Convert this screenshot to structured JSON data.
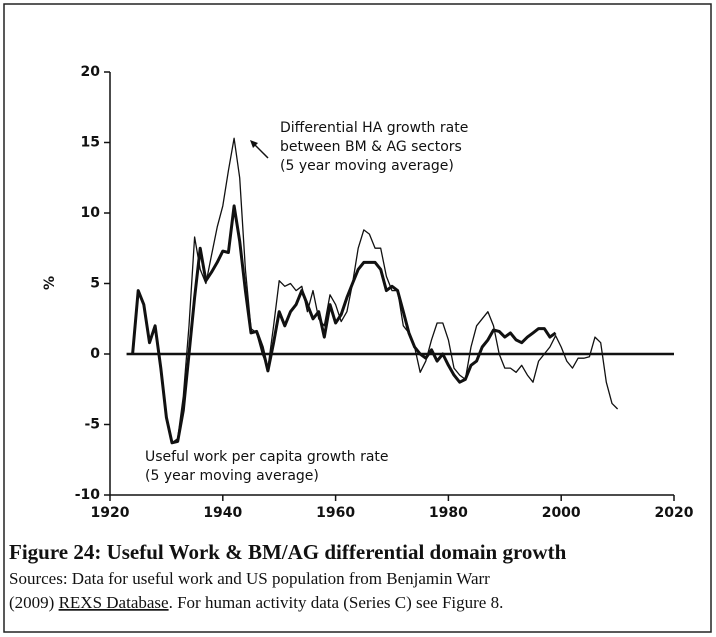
{
  "chart_data": {
    "type": "line",
    "ylabel": "%",
    "x": [
      1924,
      1925,
      1926,
      1927,
      1928,
      1929,
      1930,
      1931,
      1932,
      1933,
      1934,
      1935,
      1936,
      1937,
      1938,
      1939,
      1940,
      1941,
      1942,
      1943,
      1944,
      1945,
      1946,
      1947,
      1948,
      1949,
      1950,
      1951,
      1952,
      1953,
      1954,
      1955,
      1956,
      1957,
      1958,
      1959,
      1960,
      1961,
      1962,
      1963,
      1964,
      1965,
      1966,
      1967,
      1968,
      1969,
      1970,
      1971,
      1972,
      1973,
      1974,
      1975,
      1976,
      1977,
      1978,
      1979,
      1980,
      1981,
      1982,
      1983,
      1984,
      1985,
      1986,
      1987,
      1988,
      1989,
      1990,
      1991,
      1992,
      1993,
      1994,
      1995,
      1996,
      1997,
      1998,
      1999,
      2000,
      2001,
      2002,
      2003,
      2004,
      2005,
      2006,
      2007,
      2008,
      2009,
      2010
    ],
    "series": [
      {
        "annotation": [
          "Differential HA growth rate",
          "between BM & AG sectors",
          "(5 year moving average)"
        ],
        "color": "#111111",
        "width": 1.3,
        "values": [
          0,
          4.5,
          3.5,
          0.8,
          2,
          -1,
          -4.5,
          -6.3,
          -6,
          -3,
          2,
          8.3,
          6,
          5,
          7,
          9,
          10.5,
          13,
          15.3,
          12.5,
          6,
          1.8,
          1.5,
          0,
          -1,
          2,
          5.2,
          4.8,
          5,
          4.5,
          4.8,
          3,
          4.5,
          2.5,
          2,
          4.2,
          3.5,
          2.3,
          3,
          5,
          7.5,
          8.8,
          8.5,
          7.5,
          7.5,
          5.5,
          4.5,
          4.5,
          2,
          1.5,
          0.5,
          -1.3,
          -0.5,
          1,
          2.2,
          2.2,
          1,
          -1,
          -1.5,
          -1.8,
          0.5,
          2,
          2.5,
          3,
          2,
          0,
          -1,
          -1,
          -1.3,
          -0.8,
          -1.5,
          -2,
          -0.5,
          0,
          0.5,
          1.3,
          0.5,
          -0.5,
          -1,
          -0.3,
          -0.3,
          -0.2,
          1.2,
          0.8,
          -2,
          -3.5,
          -3.9
        ]
      },
      {
        "annotation": [
          "Useful work per capita growth rate",
          "(5 year moving average)"
        ],
        "color": "#111111",
        "width": 3,
        "values": [
          0,
          4.5,
          3.5,
          0.8,
          2,
          -1,
          -4.5,
          -6.3,
          -6.2,
          -4,
          0,
          4,
          7.5,
          5.2,
          5.8,
          6.5,
          7.3,
          7.2,
          10.5,
          8,
          4.5,
          1.5,
          1.6,
          0.5,
          -1.2,
          0.8,
          3,
          2,
          3,
          3.5,
          4.5,
          3.5,
          2.5,
          3,
          1.2,
          3.5,
          2.2,
          2.8,
          4,
          5,
          6,
          6.5,
          6.5,
          6.5,
          6,
          4.5,
          4.8,
          4.5,
          3,
          1.5,
          0.5,
          0,
          -0.3,
          0.3,
          -0.5,
          0,
          -0.8,
          -1.5,
          -2,
          -1.8,
          -0.8,
          -0.5,
          0.5,
          1,
          1.7,
          1.6,
          1.2,
          1.5,
          1,
          0.8,
          1.2,
          1.5,
          1.8,
          1.8,
          1.2,
          1.5,
          null,
          null,
          null,
          null,
          null,
          null,
          null,
          null,
          null,
          null,
          null
        ]
      }
    ],
    "xlim": [
      1920,
      2020
    ],
    "xticks": [
      1920,
      1940,
      1960,
      1980,
      2000,
      2020
    ],
    "ylim": [
      -10,
      20
    ],
    "yticks": [
      20,
      15,
      10,
      5,
      0,
      -5,
      -10
    ],
    "zero_line": true
  },
  "caption": {
    "title": "Figure 24: Useful Work & BM/AG differential domain growth",
    "source_line1": "Sources: Data for useful work and US population from Benjamin Warr",
    "source_line2_start": "(2009) ",
    "source_link": "REXS Database",
    "source_line2_end": ". For human activity data (Series C) see Figure 8."
  }
}
